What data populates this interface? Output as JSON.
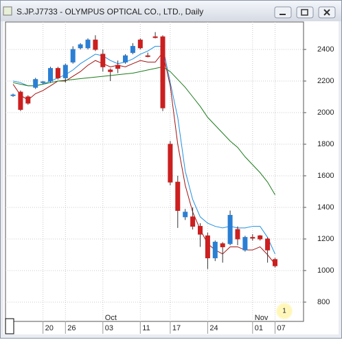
{
  "chart_data": {
    "type": "candlestick",
    "title": "S.JP.J7733 - OLYMPUS OPTICAL CO., LTD., Daily",
    "categories": [
      null,
      null,
      null,
      null,
      "20",
      null,
      null,
      "26",
      null,
      null,
      null,
      null,
      "03",
      null,
      null,
      null,
      null,
      "11",
      null,
      null,
      null,
      "17",
      null,
      null,
      null,
      null,
      "24",
      null,
      null,
      null,
      null,
      null,
      "01",
      null,
      null,
      "07"
    ],
    "month_labels": [
      {
        "index": 12,
        "label": "Oct"
      },
      {
        "index": 32,
        "label": "Nov"
      }
    ],
    "open": [
      2110,
      2130,
      2100,
      2160,
      2190,
      2200,
      2280,
      2220,
      2320,
      2410,
      2410,
      2460,
      2370,
      2270,
      2300,
      2320,
      2380,
      2460,
      2360,
      2480,
      2480,
      1800,
      1560,
      1340,
      1340,
      1280,
      1220,
      1080,
      1170,
      1170,
      1260,
      1130,
      1210,
      1220,
      1200,
      1070
    ],
    "high": [
      2120,
      2140,
      2110,
      2220,
      2200,
      2290,
      2290,
      2310,
      2420,
      2440,
      2470,
      2490,
      2400,
      2280,
      2330,
      2370,
      2440,
      2470,
      2380,
      2510,
      2490,
      1820,
      1600,
      1390,
      1400,
      1300,
      1240,
      1190,
      1180,
      1380,
      1280,
      1220,
      1230,
      1225,
      1210,
      1080
    ],
    "low": [
      2100,
      2010,
      2050,
      2150,
      2180,
      2190,
      2210,
      2190,
      2310,
      2400,
      2400,
      2390,
      2260,
      2200,
      2250,
      2310,
      2370,
      2400,
      2350,
      2470,
      2010,
      1540,
      1270,
      1320,
      1260,
      1150,
      1010,
      1060,
      1050,
      1160,
      1160,
      1120,
      1190,
      1190,
      1050,
      1020
    ],
    "close": [
      2112,
      2020,
      2060,
      2210,
      2195,
      2280,
      2220,
      2300,
      2400,
      2430,
      2460,
      2400,
      2290,
      2260,
      2280,
      2360,
      2420,
      2410,
      2355,
      2475,
      2030,
      1560,
      1380,
      1370,
      1280,
      1230,
      1080,
      1180,
      1150,
      1350,
      1200,
      1210,
      1205,
      1200,
      1130,
      1030
    ],
    "up_color": "#2a7fd4",
    "down_color": "#cc1f1f",
    "lines": [
      {
        "color": "#1e8fe0",
        "values": [
          2200,
          2190,
          2170,
          2170,
          2180,
          2200,
          2220,
          2240,
          2270,
          2310,
          2340,
          2370,
          2360,
          2330,
          2310,
          2320,
          2340,
          2370,
          2390,
          2420,
          2420,
          2190,
          1970,
          1630,
          1450,
          1340,
          1300,
          1280,
          1270,
          1280,
          1270,
          1270,
          1280,
          1280,
          1210,
          1105
        ]
      },
      {
        "color": "#a01010",
        "values": [
          2180,
          2110,
          2080,
          2120,
          2140,
          2170,
          2200,
          2200,
          2230,
          2260,
          2300,
          2330,
          2310,
          2290,
          2300,
          2290,
          2310,
          2330,
          2320,
          2320,
          2380,
          2170,
          1800,
          1540,
          1370,
          1260,
          1170,
          1130,
          1105,
          1150,
          1150,
          1130,
          1130,
          1150,
          1100,
          1040
        ]
      },
      {
        "color": "#1a7a1a",
        "values": [
          2190,
          2180,
          2170,
          2170,
          2180,
          2190,
          2200,
          2205,
          2210,
          2215,
          2220,
          2225,
          2230,
          2235,
          2240,
          2245,
          2250,
          2260,
          2270,
          2280,
          2290,
          2260,
          2210,
          2160,
          2100,
          2040,
          1970,
          1920,
          1870,
          1820,
          1780,
          1720,
          1670,
          1620,
          1560,
          1480
        ]
      }
    ],
    "ylim": [
      678,
      2574
    ],
    "yticks": [
      800,
      1000,
      1200,
      1400,
      1600,
      1800,
      2000,
      2200,
      2400
    ],
    "grid": true,
    "badge": "1"
  }
}
